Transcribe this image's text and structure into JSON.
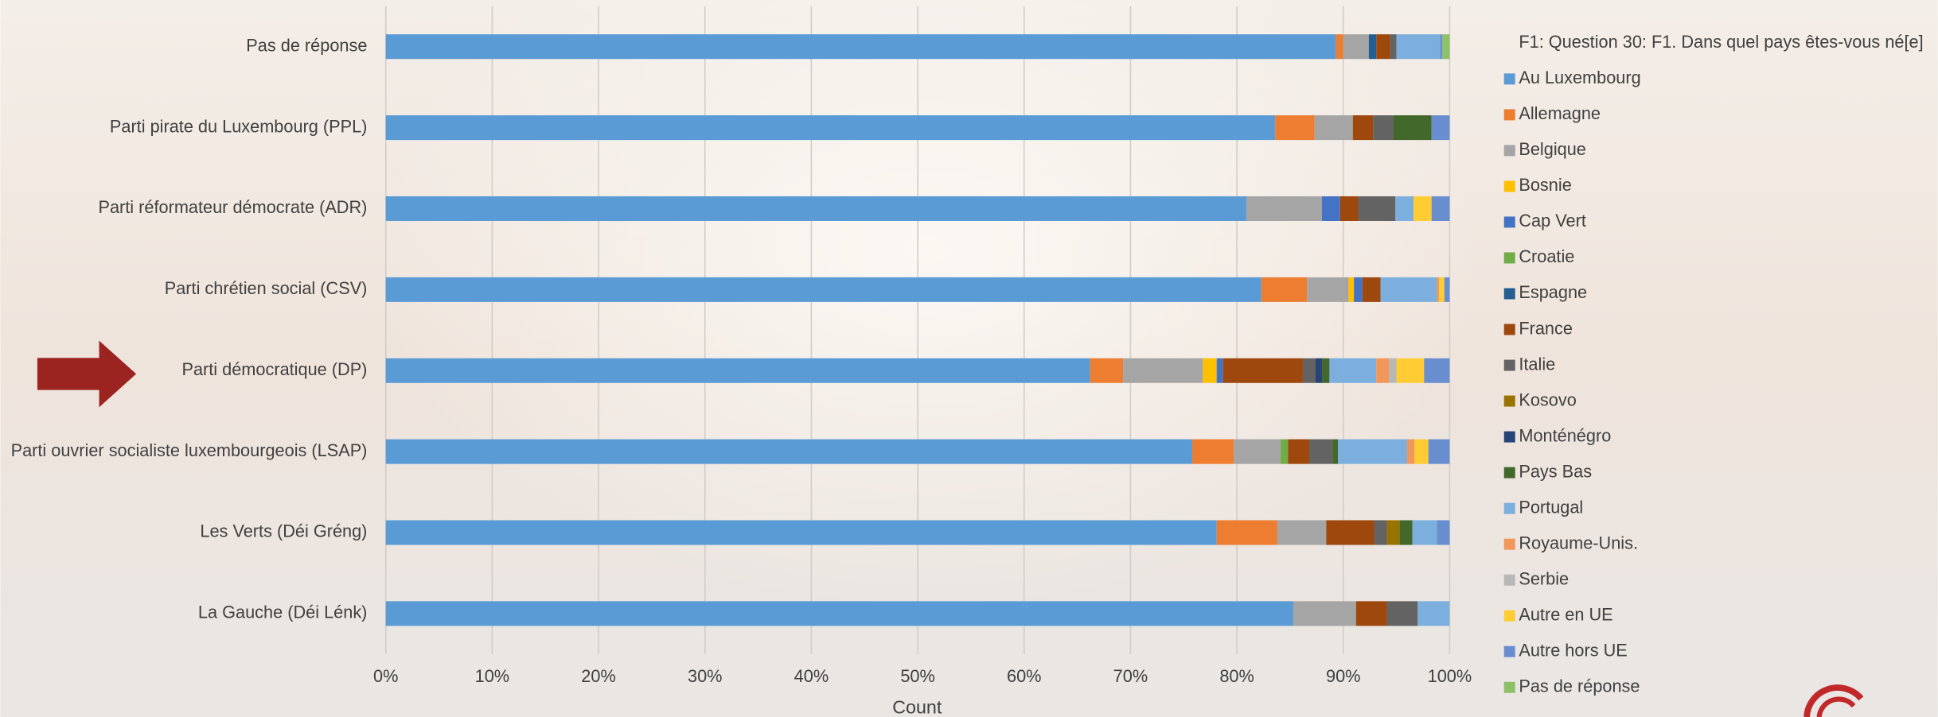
{
  "chart_data": {
    "type": "stacked-barh",
    "x_label": "Count",
    "legend_title": "F1: Question 30: F1. Dans quel pays êtes-vous né[e]",
    "legend_position": "right",
    "grid": true,
    "categories": [
      "Pas de réponse",
      "Parti pirate du Luxembourg (PPL)",
      "Parti réformateur démocrate (ADR)",
      "Parti chrétien social (CSV)",
      "Parti démocratique (DP)",
      "Parti ouvrier socialiste luxembourgeois (LSAP)",
      "Les Verts (Déi Gréng)",
      "La Gauche (Déi Lénk)"
    ],
    "xlim": [
      0,
      100
    ],
    "xticks": [
      {
        "value": 0,
        "label": "0%"
      },
      {
        "value": 10,
        "label": "10%"
      },
      {
        "value": 20,
        "label": "20%"
      },
      {
        "value": 30,
        "label": "30%"
      },
      {
        "value": 40,
        "label": "40%"
      },
      {
        "value": 50,
        "label": "50%"
      },
      {
        "value": 60,
        "label": "60%"
      },
      {
        "value": 70,
        "label": "70%"
      },
      {
        "value": 80,
        "label": "80%"
      },
      {
        "value": 90,
        "label": "90%"
      },
      {
        "value": 100,
        "label": "100%"
      }
    ],
    "series": [
      {
        "name": "Au Luxembourg",
        "color": "#5b9bd5",
        "values": [
          89.3,
          83.6,
          80.9,
          82.3,
          66.2,
          75.8,
          78.1,
          85.3
        ]
      },
      {
        "name": "Allemagne",
        "color": "#ed7d31",
        "values": [
          0.7,
          3.7,
          0,
          4.3,
          3.1,
          3.9,
          5.7,
          0
        ]
      },
      {
        "name": "Belgique",
        "color": "#a5a5a5",
        "values": [
          2.4,
          3.6,
          7.1,
          3.9,
          7.5,
          4.4,
          4.6,
          5.9
        ]
      },
      {
        "name": "Bosnie",
        "color": "#ffc000",
        "values": [
          0,
          0,
          0,
          0.5,
          1.3,
          0,
          0,
          0
        ]
      },
      {
        "name": "Cap Vert",
        "color": "#4472c4",
        "values": [
          0,
          0,
          1.7,
          0.8,
          0.6,
          0,
          0,
          0
        ]
      },
      {
        "name": "Croatie",
        "color": "#70ad47",
        "values": [
          0,
          0,
          0,
          0,
          0,
          0.7,
          0,
          0
        ]
      },
      {
        "name": "Espagne",
        "color": "#255e91",
        "values": [
          0.7,
          0,
          0,
          0,
          0,
          0,
          0,
          0
        ]
      },
      {
        "name": "France",
        "color": "#9e480e",
        "values": [
          1.3,
          1.9,
          1.7,
          1.7,
          7.5,
          2.0,
          4.5,
          2.9
        ]
      },
      {
        "name": "Italie",
        "color": "#636363",
        "values": [
          0.6,
          1.9,
          3.5,
          0,
          1.2,
          2.2,
          1.2,
          2.9
        ]
      },
      {
        "name": "Kosovo",
        "color": "#997300",
        "values": [
          0,
          0,
          0,
          0,
          0,
          0,
          1.2,
          0
        ]
      },
      {
        "name": "Monténégro",
        "color": "#264478",
        "values": [
          0,
          0,
          0,
          0,
          0.6,
          0,
          0,
          0
        ]
      },
      {
        "name": "Pays Bas",
        "color": "#43682b",
        "values": [
          0,
          3.6,
          0,
          0,
          0.7,
          0.5,
          1.2,
          0
        ]
      },
      {
        "name": "Portugal",
        "color": "#7cafdd",
        "values": [
          4.1,
          0,
          1.7,
          5.3,
          4.4,
          6.5,
          2.3,
          3.0
        ]
      },
      {
        "name": "Royaume-Unis.",
        "color": "#f1975a",
        "values": [
          0,
          0,
          0,
          0.2,
          1.2,
          0.7,
          0,
          0
        ]
      },
      {
        "name": "Serbie",
        "color": "#b7b7b7",
        "values": [
          0,
          0,
          0,
          0,
          0.7,
          0,
          0,
          0
        ]
      },
      {
        "name": "Autre en UE",
        "color": "#ffcd33",
        "values": [
          0,
          0,
          1.7,
          0.5,
          2.6,
          1.3,
          0,
          0
        ]
      },
      {
        "name": "Autre hors UE",
        "color": "#698ed0",
        "values": [
          0.2,
          1.7,
          1.7,
          0.5,
          2.4,
          2.0,
          1.2,
          0
        ]
      },
      {
        "name": "Pas de réponse",
        "color": "#8cc168",
        "values": [
          0.7,
          0,
          0,
          0,
          0,
          0,
          0,
          0
        ]
      }
    ]
  }
}
